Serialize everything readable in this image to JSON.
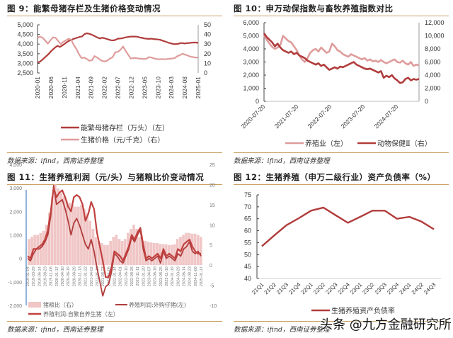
{
  "colors": {
    "dark_red": "#b13c3c",
    "light_pink": "#df9c9c",
    "bar_pink": "#f0c6c6",
    "divider_gold": "#c9a063",
    "axis_gray": "#555555",
    "axis_blue": "#6c9ad0"
  },
  "source_text": "数据来源：ifind，西南证券整理",
  "watermark": "头条 @九方金融研究所",
  "chart_data": [
    {
      "id": "fig9",
      "type": "line",
      "title": "图 9：能繁母猪存栏及生猪价格变动情况",
      "x_ticks": [
        "2020-01",
        "2020-06",
        "2020-11",
        "2021-04",
        "2021-09",
        "2022-02",
        "2022-07",
        "2022-12",
        "2023-05",
        "2023-10",
        "2024-03",
        "2024-08",
        "2025-01"
      ],
      "y_left": {
        "range": [
          2500,
          5000
        ],
        "ticks": [
          "2,500",
          "3,000",
          "3,500",
          "4,000",
          "4,500",
          "5,000"
        ]
      },
      "y_right": {
        "range": [
          0,
          50
        ],
        "ticks": [
          "0",
          "10",
          "20",
          "30",
          "40",
          "50"
        ]
      },
      "grid": false,
      "legend_position": "bottom",
      "series": [
        {
          "name": "能繁母猪存栏（万头）（左）",
          "axis": "left",
          "color_key": "dark_red",
          "values": [
            3040,
            3080,
            3170,
            3280,
            3380,
            3490,
            3620,
            3730,
            3830,
            3910,
            3850,
            3920,
            4000,
            4090,
            4160,
            4210,
            4260,
            4300,
            4340,
            4370,
            4400,
            4510,
            4560,
            4540,
            4500,
            4450,
            4390,
            4330,
            4290,
            4330,
            4300,
            4270,
            4230,
            4200,
            4190,
            4220,
            4280,
            4290,
            4300,
            4340,
            4360,
            4380,
            4390,
            4390,
            4390,
            4370,
            4340,
            4320,
            4290,
            4280,
            4270,
            4280,
            4260,
            4250,
            4240,
            4220,
            4180,
            4140,
            4100,
            4060,
            4030,
            4000,
            4000,
            4010,
            4050,
            4050,
            4030,
            4050,
            4060,
            4070,
            4080,
            4080,
            4060
          ]
        },
        {
          "name": "生猪价格（元/千克）（右）",
          "axis": "right",
          "color_key": "light_pink",
          "values": [
            36.5,
            37.8,
            36.5,
            33.5,
            30.5,
            34.0,
            37.0,
            36.5,
            33.0,
            30.0,
            32.5,
            34.0,
            35.5,
            34.5,
            29.0,
            25.0,
            19.5,
            15.5,
            16.0,
            14.5,
            12.7,
            13.2,
            17.5,
            16.0,
            14.0,
            12.5,
            12.0,
            13.0,
            15.0,
            16.5,
            21.5,
            22.0,
            24.0,
            27.5,
            23.0,
            19.0,
            15.0,
            15.5,
            15.5,
            15.0,
            14.8,
            14.5,
            14.8,
            16.5,
            16.0,
            15.0,
            14.5,
            14.2,
            14.5,
            14.2,
            14.5,
            14.8,
            15.0,
            15.5,
            17.5,
            18.5,
            20.0,
            19.0,
            18.0,
            17.0,
            16.5,
            16.0,
            16.0
          ]
        }
      ]
    },
    {
      "id": "fig10",
      "type": "line",
      "title": "图 10：申万动保指数与畜牧养殖指数对比",
      "x_ticks": [
        "2020-07-20",
        "2021-07-20",
        "2022-07-20",
        "2023-07-20",
        "2024-07-20"
      ],
      "y_left": {
        "range": [
          0,
          6000
        ],
        "ticks": [
          "0",
          "1,000",
          "2,000",
          "3,000",
          "4,000",
          "5,000",
          "6,000"
        ]
      },
      "y_right": {
        "range": [
          0,
          12000
        ],
        "ticks": [
          "0",
          "2,000",
          "4,000",
          "6,000",
          "8,000",
          "10,000",
          "12,000"
        ]
      },
      "grid": false,
      "legend_position": "bottom",
      "series": [
        {
          "name": "养殖业（左）",
          "axis": "left",
          "color_key": "light_pink",
          "values": [
            5000,
            4700,
            4400,
            4150,
            4000,
            4100,
            4300,
            5000,
            4800,
            4600,
            4500,
            4200,
            3900,
            3500,
            3200,
            3000,
            3300,
            3700,
            3900,
            4000,
            3800,
            4100,
            3900,
            3700,
            3800,
            4400,
            4200,
            3900,
            3800,
            3600,
            3500,
            3400,
            3600,
            3500,
            3400,
            3300,
            3200,
            3300,
            3100,
            3200,
            3050,
            3100,
            3000,
            3150,
            3000,
            2900,
            3000,
            3100,
            3200,
            3000,
            2950,
            3100,
            2900,
            2800,
            3000,
            2700,
            2800,
            2750
          ]
        },
        {
          "name": "动物保健Ⅱ（右）",
          "axis": "right",
          "color_key": "dark_red",
          "values": [
            10400,
            9800,
            9400,
            9000,
            8400,
            8800,
            8200,
            7800,
            7600,
            7400,
            7600,
            7200,
            7400,
            7000,
            6800,
            6600,
            6200,
            6000,
            5800,
            5600,
            5800,
            5400,
            5600,
            5200,
            4800,
            5000,
            5200,
            5000,
            5300,
            5200,
            5400,
            5600,
            5800,
            6000,
            5600,
            5400,
            5200,
            5000,
            4900,
            5000,
            4800,
            4600,
            4400,
            4600,
            3600,
            3900,
            3700,
            4000,
            3500,
            3200,
            2800,
            2900,
            3400,
            3600,
            3200,
            3400,
            3300,
            3400
          ]
        }
      ]
    },
    {
      "id": "fig11",
      "type": "line",
      "title": "图 11：生猪养殖利润（元/头）与猪粮比价变动情况",
      "x_ticks": [
        "2019-01-04",
        "2019-03-29",
        "2019-06-14",
        "2019-08-23",
        "2019-11-08",
        "2020-01-17",
        "2020-04-10",
        "2020-06-19",
        "2020-08-28",
        "2020-11-13",
        "2021-01-22",
        "2021-04-02",
        "2021-06-18",
        "2021-08-27",
        "2021-11-05",
        "2022-01-14",
        "2022-04-01",
        "2022-06-10",
        "2022-08-26",
        "2022-11-11",
        "2023-01-20",
        "2023-04-07",
        "2023-06-16",
        "2023-08-25",
        "2023-11-10",
        "2024-01-19",
        "2024-03-29",
        "2024-06-14",
        "2024-08-23",
        "2024-11-08",
        "2025-01-17"
      ],
      "y_left": {
        "range": [
          -2000,
          4000
        ],
        "ticks": [
          "-2,000",
          "-1,000",
          "0",
          "1,000",
          "2,000",
          "3,000",
          "4,000"
        ]
      },
      "y_right": {
        "range": [
          -10,
          25
        ],
        "ticks": [
          "-10",
          "-5",
          "0",
          "5",
          "10",
          "15",
          "20",
          "25"
        ]
      },
      "grid": false,
      "legend_position": "bottom",
      "series": [
        {
          "name": "猪粮比（右）",
          "axis": "right",
          "kind": "bar",
          "color_key": "bar_pink",
          "values": [
            6.5,
            7,
            7.5,
            7.5,
            8,
            8.5,
            10,
            13,
            17,
            20,
            19,
            18,
            17,
            16,
            15.5,
            15,
            14.5,
            14.5,
            15,
            14,
            13,
            11,
            9,
            7,
            6,
            5.5,
            5,
            5,
            6,
            7,
            7.5,
            6.5,
            6,
            6.5,
            8,
            9,
            10,
            9,
            7,
            6,
            6,
            5.8,
            5.6,
            5.5,
            5.5,
            5.3,
            5.2,
            5.2,
            5,
            5,
            5.2,
            6.5,
            7,
            7.5,
            8,
            8,
            7.8,
            7.8,
            7.5,
            7
          ]
        },
        {
          "name": "养殖利润:外购仔猪(左)",
          "axis": "left",
          "color_key": "dark_red",
          "values": [
            0,
            -100,
            200,
            400,
            400,
            500,
            700,
            1000,
            1800,
            3100,
            2300,
            2400,
            2500,
            2100,
            1600,
            1000,
            1500,
            1700,
            1400,
            1000,
            600,
            400,
            800,
            300,
            -400,
            -1000,
            -1600,
            -1200,
            -1100,
            -600,
            200,
            100,
            -100,
            -200,
            100,
            400,
            900,
            700,
            1000,
            1200,
            400,
            -100,
            0,
            -100,
            0,
            100,
            -200,
            300,
            0,
            100,
            0,
            -100,
            200,
            100,
            400,
            500,
            700,
            300,
            200,
            300,
            100
          ]
        },
        {
          "name": "养殖利润:自繁自养生猪（左）",
          "axis": "left",
          "color_key": "dark_red_2",
          "values": [
            100,
            0,
            400,
            400,
            500,
            600,
            800,
            1200,
            2000,
            3000,
            2600,
            2800,
            2900,
            2600,
            2200,
            2000,
            2600,
            2700,
            2600,
            2300,
            1600,
            1900,
            2400,
            2100,
            1100,
            500,
            -100,
            -800,
            -800,
            -400,
            300,
            200,
            100,
            -100,
            200,
            500,
            1000,
            800,
            1100,
            1300,
            600,
            0,
            100,
            0,
            100,
            200,
            0,
            400,
            100,
            200,
            100,
            0,
            400,
            300,
            600,
            700,
            800,
            500,
            300,
            200,
            200
          ]
        }
      ]
    },
    {
      "id": "fig12",
      "type": "line",
      "title": "图 12：生猪养殖（申万二级行业）资产负债率（%）",
      "categories": [
        "21Q1",
        "21Q2",
        "21Q3",
        "21Q4",
        "22Q1",
        "22Q2",
        "22Q3",
        "22Q4",
        "23Q1",
        "23Q2",
        "23Q3",
        "23Q4",
        "24Q1",
        "24Q2",
        "24Q3"
      ],
      "y_left": {
        "range": [
          40,
          75
        ],
        "ticks": [
          "40",
          "45",
          "50",
          "55",
          "60",
          "65",
          "70",
          "75"
        ]
      },
      "grid": false,
      "legend_position": "bottom",
      "series": [
        {
          "name": "生猪养殖资产负债率",
          "axis": "left",
          "color_key": "dark_red",
          "values": [
            53.5,
            58.0,
            62.3,
            65.2,
            68.4,
            69.7,
            66.5,
            63.3,
            65.8,
            68.4,
            68.4,
            65.0,
            65.8,
            63.8,
            60.6
          ]
        }
      ]
    }
  ]
}
